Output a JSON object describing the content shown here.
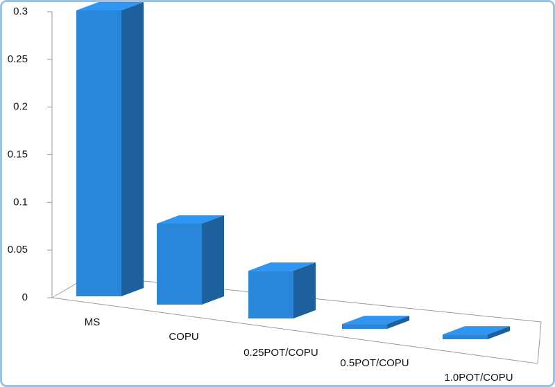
{
  "chart_data": {
    "type": "bar3d",
    "categories": [
      "MS",
      "COPU",
      "0.25POT/COPU",
      "0.5POT/COPU",
      "1.0POT/COPU"
    ],
    "values": [
      0.3,
      0.085,
      0.05,
      0.005,
      0.005
    ],
    "color": "#2a86d9",
    "ylim": [
      0,
      0.3
    ],
    "yticks": [
      0,
      0.05,
      0.1,
      0.15,
      0.2,
      0.25,
      0.3
    ]
  }
}
